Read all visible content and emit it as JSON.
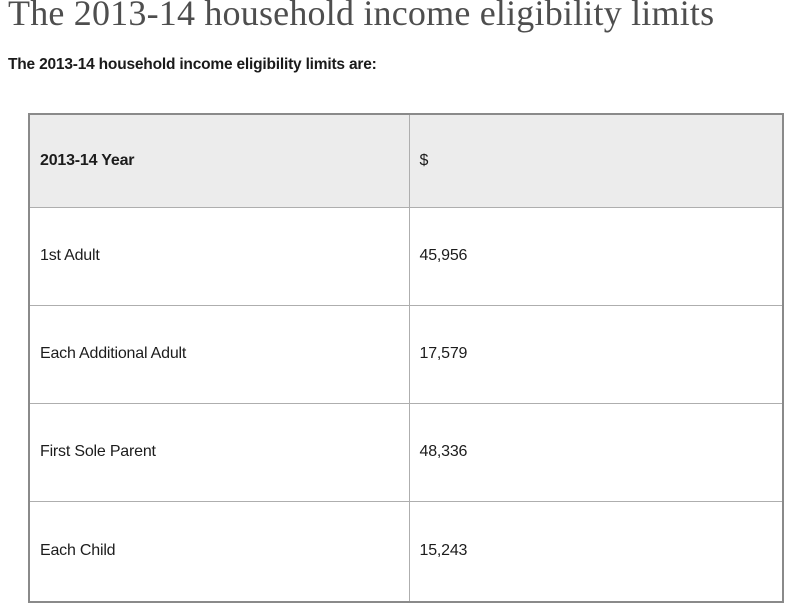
{
  "page": {
    "title": "The 2013-14 household income eligibility limits",
    "intro": "The 2013-14 household income eligibility limits are:"
  },
  "colors": {
    "title_text": "#4e4e4e",
    "body_text": "#1c1c1c",
    "table_header_bg": "#ececec",
    "table_border_outer": "#8a8a8a",
    "table_border_inner": "#aeaeae"
  },
  "table": {
    "headers": [
      "2013-14 Year",
      "$"
    ],
    "rows": [
      {
        "label": "1st Adult",
        "value": "45,956"
      },
      {
        "label": "Each Additional Adult",
        "value": "17,579"
      },
      {
        "label": "First Sole Parent",
        "value": "48,336"
      },
      {
        "label": "Each Child",
        "value": "15,243"
      }
    ]
  }
}
